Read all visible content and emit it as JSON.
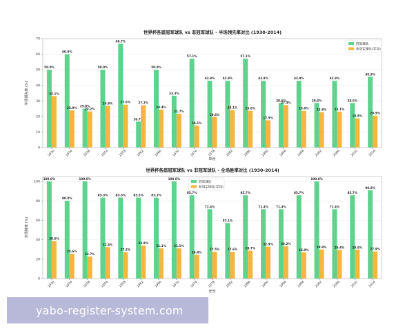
{
  "colors": {
    "champion": "#5fd38d",
    "nonchampion": "#f3b63f",
    "frame": "#bbbbbb",
    "grid": "#e6e6e6"
  },
  "chart_data": [
    {
      "type": "bar",
      "title": "世界杯各届冠军球队 vs 非冠军球队 - 半场领先率对比 (1930-2014)",
      "xlabel": "年份",
      "ylabel": "半场领先率 (%)",
      "ylim": [
        0,
        70
      ],
      "yticks": [
        0,
        10,
        20,
        30,
        40,
        50,
        60,
        70
      ],
      "legend_position": "top-right",
      "categories": [
        "1930",
        "1934",
        "1938",
        "1954",
        "1958",
        "1962",
        "1966",
        "1970",
        "1974",
        "1978",
        "1982",
        "1986",
        "1990",
        "1994",
        "1998",
        "2002",
        "2006",
        "2010",
        "2014"
      ],
      "series": [
        {
          "name": "冠军球队",
          "key": "champion",
          "values": [
            50.0,
            60.0,
            25.0,
            50.0,
            66.7,
            16.7,
            50.0,
            33.3,
            57.1,
            42.9,
            42.9,
            57.1,
            42.9,
            28.6,
            42.9,
            28.6,
            42.9,
            28.6,
            45.5
          ],
          "labels": [
            "50.0%",
            "60.0%",
            "25.0%",
            "50.0%",
            "66.7%",
            "16.7%",
            "50.0%",
            "33.3%",
            "57.1%",
            "42.9%",
            "42.9%",
            "57.1%",
            "42.9%",
            "28.6%",
            "42.9%",
            "28.6%",
            "42.9%",
            "28.6%",
            "45.5%"
          ]
        },
        {
          "name": "非冠军球队(平均)",
          "key": "nonchampion",
          "values": [
            33.1,
            23.9,
            23.2,
            26.8,
            27.6,
            27.2,
            24.4,
            21.7,
            14.1,
            19.6,
            24.1,
            23.6,
            17.5,
            27.3,
            23.6,
            22.8,
            23.1,
            18.8,
            20.5
          ],
          "labels": [
            "33.1%",
            "23.9%",
            "23.2%",
            "26.8%",
            "27.6%",
            "27.2%",
            "24.4%",
            "21.7%",
            "14.1%",
            "19.6%",
            "24.1%",
            "23.6%",
            "17.5%",
            "27.3%",
            "23.6%",
            "22.8%",
            "23.1%",
            "18.8%",
            "20.5%"
          ]
        }
      ]
    },
    {
      "type": "bar",
      "title": "世界杯各届冠军球队 vs 非冠军球队 - 全场胜率对比 (1930-2014)",
      "xlabel": "年份",
      "ylabel": "全场胜率 (%)",
      "ylim": [
        0,
        105
      ],
      "yticks": [
        0,
        20,
        40,
        60,
        80,
        100
      ],
      "legend_position": "top-center",
      "categories": [
        "1930",
        "1934",
        "1938",
        "1954",
        "1958",
        "1962",
        "1966",
        "1970",
        "1974",
        "1978",
        "1982",
        "1986",
        "1990",
        "1994",
        "1998",
        "2002",
        "2006",
        "2010",
        "2014"
      ],
      "series": [
        {
          "name": "冠军球队",
          "key": "champion",
          "values": [
            100.0,
            80.0,
            100.0,
            83.3,
            83.3,
            83.3,
            83.3,
            100.0,
            85.7,
            71.4,
            57.1,
            85.7,
            71.4,
            71.4,
            85.7,
            100.0,
            71.4,
            85.7,
            90.9
          ],
          "labels": [
            "100.0%",
            "80.0%",
            "100.0%",
            "83.3%",
            "83.3%",
            "83.3%",
            "83.3%",
            "100.0%",
            "85.7%",
            "71.4%",
            "57.1%",
            "85.7%",
            "71.4%",
            "71.4%",
            "85.7%",
            "100.0%",
            "71.4%",
            "85.7%",
            "90.9%"
          ]
        },
        {
          "name": "非冠军球队(平均)",
          "key": "nonchampion",
          "values": [
            38.6,
            25.6,
            22.7,
            32.4,
            27.2,
            33.9,
            31.1,
            31.1,
            24.4,
            27.5,
            27.6,
            28.7,
            32.9,
            33.2,
            26.9,
            29.9,
            29.4,
            29.6,
            27.9
          ],
          "labels": [
            "38.6%",
            "25.6%",
            "22.7%",
            "32.4%",
            "27.2%",
            "33.9%",
            "31.1%",
            "31.1%",
            "24.4%",
            "27.5%",
            "27.6%",
            "28.7%",
            "32.9%",
            "33.2%",
            "26.9%",
            "29.9%",
            "29.4%",
            "29.6%",
            "27.9%"
          ]
        }
      ]
    }
  ],
  "watermark": {
    "text": "yabo-register-system.com"
  }
}
